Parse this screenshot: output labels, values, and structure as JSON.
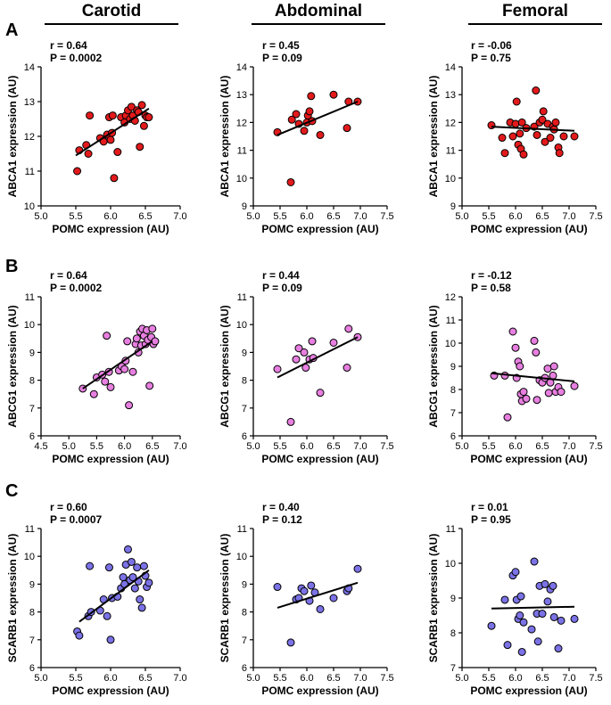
{
  "columns": [
    "Carotid",
    "Abdominal",
    "Femoral"
  ],
  "rows": [
    "A",
    "B",
    "C"
  ],
  "colors": {
    "ABCA1": "#e31a1c",
    "ABCG1": "#e77fe0",
    "SCARB1": "#7b72e6",
    "axis": "#000000"
  },
  "chart_data": [
    {
      "type": "scatter",
      "id": "A-carotid",
      "row": "A",
      "site": "Carotid",
      "r_text": "r = 0.64",
      "p_text": "P = 0.0002",
      "xlabel": "POMC expression (AU)",
      "ylabel": "ABCA1 expression (AU)",
      "xlim": [
        5.0,
        7.0
      ],
      "xticks": [
        5.0,
        5.5,
        6.0,
        6.5,
        7.0
      ],
      "xticklabels": [
        "5.0",
        "5.5",
        "6.0",
        "6.5",
        "7.0"
      ],
      "ylim": [
        10,
        14
      ],
      "yticks": [
        10,
        11,
        12,
        13,
        14
      ],
      "yticklabels": [
        "10",
        "11",
        "12",
        "13",
        "14"
      ],
      "fit": [
        [
          5.5,
          11.45
        ],
        [
          6.55,
          12.8
        ]
      ],
      "points": [
        [
          5.52,
          11.0
        ],
        [
          5.55,
          11.6
        ],
        [
          5.65,
          11.75
        ],
        [
          5.68,
          11.5
        ],
        [
          5.7,
          12.6
        ],
        [
          5.85,
          11.95
        ],
        [
          5.9,
          11.85
        ],
        [
          5.95,
          12.05
        ],
        [
          5.98,
          12.55
        ],
        [
          6.0,
          11.9
        ],
        [
          6.02,
          12.1
        ],
        [
          6.03,
          12.6
        ],
        [
          6.05,
          10.8
        ],
        [
          6.1,
          11.55
        ],
        [
          6.15,
          12.55
        ],
        [
          6.2,
          12.4
        ],
        [
          6.22,
          12.6
        ],
        [
          6.25,
          12.75
        ],
        [
          6.28,
          12.5
        ],
        [
          6.3,
          12.85
        ],
        [
          6.32,
          12.6
        ],
        [
          6.35,
          12.45
        ],
        [
          6.38,
          12.75
        ],
        [
          6.4,
          12.7
        ],
        [
          6.42,
          11.7
        ],
        [
          6.45,
          12.9
        ],
        [
          6.48,
          12.3
        ],
        [
          6.5,
          12.6
        ],
        [
          6.52,
          12.55
        ],
        [
          6.55,
          12.55
        ]
      ]
    },
    {
      "type": "scatter",
      "id": "A-abdominal",
      "row": "A",
      "site": "Abdominal",
      "r_text": "r = 0.45",
      "p_text": "P = 0.09",
      "xlabel": "POMC expression (AU)",
      "ylabel": "ABCA1 expression (AU)",
      "xlim": [
        5.0,
        7.5
      ],
      "xticks": [
        5.0,
        5.5,
        6.0,
        6.5,
        7.0,
        7.5
      ],
      "xticklabels": [
        "5.0",
        "5.5",
        "6.0",
        "6.5",
        "7.0",
        "7.5"
      ],
      "ylim": [
        9,
        14
      ],
      "yticks": [
        9,
        10,
        11,
        12,
        13,
        14
      ],
      "yticklabels": [
        "9",
        "10",
        "11",
        "12",
        "13",
        "14"
      ],
      "fit": [
        [
          5.45,
          11.55
        ],
        [
          6.95,
          12.75
        ]
      ],
      "points": [
        [
          5.45,
          11.65
        ],
        [
          5.7,
          9.85
        ],
        [
          5.72,
          12.1
        ],
        [
          5.8,
          12.3
        ],
        [
          5.85,
          11.95
        ],
        [
          5.95,
          11.7
        ],
        [
          6.0,
          12.0
        ],
        [
          6.02,
          12.25
        ],
        [
          6.05,
          12.4
        ],
        [
          6.08,
          12.95
        ],
        [
          6.1,
          12.05
        ],
        [
          6.25,
          11.55
        ],
        [
          6.5,
          13.0
        ],
        [
          6.75,
          11.8
        ],
        [
          6.78,
          12.75
        ],
        [
          6.95,
          12.75
        ]
      ]
    },
    {
      "type": "scatter",
      "id": "A-femoral",
      "row": "A",
      "site": "Femoral",
      "r_text": "r = -0.06",
      "p_text": "P = 0.75",
      "xlabel": "POMC expression (AU)",
      "ylabel": "ABCA1 expression (AU)",
      "xlim": [
        5.0,
        7.5
      ],
      "xticks": [
        5.0,
        5.5,
        6.0,
        6.5,
        7.0,
        7.5
      ],
      "xticklabels": [
        "5.0",
        "5.5",
        "6.0",
        "6.5",
        "7.0",
        "7.5"
      ],
      "ylim": [
        9,
        14
      ],
      "yticks": [
        9,
        10,
        11,
        12,
        13,
        14
      ],
      "yticklabels": [
        "9",
        "10",
        "11",
        "12",
        "13",
        "14"
      ],
      "fit": [
        [
          5.55,
          11.85
        ],
        [
          7.1,
          11.7
        ]
      ],
      "points": [
        [
          5.55,
          11.9
        ],
        [
          5.75,
          11.45
        ],
        [
          5.8,
          10.9
        ],
        [
          5.9,
          12.0
        ],
        [
          5.95,
          11.5
        ],
        [
          6.0,
          11.95
        ],
        [
          6.02,
          12.75
        ],
        [
          6.05,
          11.2
        ],
        [
          6.08,
          11.6
        ],
        [
          6.1,
          11.05
        ],
        [
          6.12,
          12.0
        ],
        [
          6.15,
          10.85
        ],
        [
          6.2,
          11.8
        ],
        [
          6.35,
          11.85
        ],
        [
          6.38,
          13.15
        ],
        [
          6.4,
          11.55
        ],
        [
          6.45,
          12.0
        ],
        [
          6.5,
          12.1
        ],
        [
          6.52,
          12.4
        ],
        [
          6.55,
          11.3
        ],
        [
          6.6,
          11.95
        ],
        [
          6.65,
          11.45
        ],
        [
          6.7,
          11.85
        ],
        [
          6.72,
          11.75
        ],
        [
          6.75,
          12.0
        ],
        [
          6.8,
          11.1
        ],
        [
          6.82,
          10.9
        ],
        [
          6.9,
          11.5
        ],
        [
          7.1,
          11.5
        ]
      ]
    },
    {
      "type": "scatter",
      "id": "B-carotid",
      "row": "B",
      "site": "Carotid",
      "r_text": "r = 0.64",
      "p_text": "P = 0.0002",
      "xlabel": "POMC expression (AU)",
      "ylabel": "ABCG1 expression (AU)",
      "xlim": [
        4.5,
        7.0
      ],
      "xticks": [
        4.5,
        5.0,
        5.5,
        6.0,
        6.5,
        7.0
      ],
      "xticklabels": [
        "4.5",
        "5.0",
        "5.5",
        "6.0",
        "6.5",
        "7.0"
      ],
      "ylim": [
        6,
        11
      ],
      "yticks": [
        6,
        7,
        8,
        9,
        10,
        11
      ],
      "yticklabels": [
        "6",
        "7",
        "8",
        "9",
        "10",
        "11"
      ],
      "fit": [
        [
          5.25,
          7.7
        ],
        [
          6.5,
          9.4
        ]
      ],
      "points": [
        [
          5.25,
          7.7
        ],
        [
          5.45,
          7.5
        ],
        [
          5.5,
          8.1
        ],
        [
          5.6,
          8.2
        ],
        [
          5.65,
          7.95
        ],
        [
          5.68,
          9.6
        ],
        [
          5.72,
          8.3
        ],
        [
          5.75,
          7.75
        ],
        [
          5.9,
          8.35
        ],
        [
          5.95,
          8.5
        ],
        [
          6.0,
          8.4
        ],
        [
          6.02,
          8.7
        ],
        [
          6.05,
          9.4
        ],
        [
          6.08,
          7.1
        ],
        [
          6.15,
          8.3
        ],
        [
          6.2,
          9.3
        ],
        [
          6.22,
          9.5
        ],
        [
          6.25,
          9.0
        ],
        [
          6.28,
          9.75
        ],
        [
          6.3,
          9.25
        ],
        [
          6.32,
          9.85
        ],
        [
          6.35,
          9.6
        ],
        [
          6.38,
          9.3
        ],
        [
          6.4,
          9.8
        ],
        [
          6.42,
          9.45
        ],
        [
          6.45,
          7.8
        ],
        [
          6.48,
          9.55
        ],
        [
          6.5,
          9.85
        ],
        [
          6.52,
          9.3
        ],
        [
          6.55,
          9.4
        ]
      ]
    },
    {
      "type": "scatter",
      "id": "B-abdominal",
      "row": "B",
      "site": "Abdominal",
      "r_text": "r = 0.44",
      "p_text": "P = 0.09",
      "xlabel": "POMC expression (AU)",
      "ylabel": "ABCG1 expression (AU)",
      "xlim": [
        5.0,
        7.5
      ],
      "xticks": [
        5.0,
        5.5,
        6.0,
        6.5,
        7.0,
        7.5
      ],
      "xticklabels": [
        "5.0",
        "5.5",
        "6.0",
        "6.5",
        "7.0",
        "7.5"
      ],
      "ylim": [
        6,
        11
      ],
      "yticks": [
        6,
        7,
        8,
        9,
        10,
        11
      ],
      "yticklabels": [
        "6",
        "7",
        "8",
        "9",
        "10",
        "11"
      ],
      "fit": [
        [
          5.45,
          8.1
        ],
        [
          6.95,
          9.55
        ]
      ],
      "points": [
        [
          5.45,
          8.4
        ],
        [
          5.7,
          6.5
        ],
        [
          5.8,
          8.75
        ],
        [
          5.85,
          9.15
        ],
        [
          5.95,
          9.0
        ],
        [
          5.98,
          8.45
        ],
        [
          6.05,
          8.75
        ],
        [
          6.1,
          9.4
        ],
        [
          6.12,
          8.8
        ],
        [
          6.25,
          7.55
        ],
        [
          6.5,
          9.35
        ],
        [
          6.75,
          8.45
        ],
        [
          6.78,
          9.85
        ],
        [
          6.95,
          9.55
        ]
      ]
    },
    {
      "type": "scatter",
      "id": "B-femoral",
      "row": "B",
      "site": "Femoral",
      "r_text": "r = -0.12",
      "p_text": "P = 0.58",
      "xlabel": "POMC expression (AU)",
      "ylabel": "ABCG1 expression (AU)",
      "xlim": [
        5.0,
        7.5
      ],
      "xticks": [
        5.0,
        5.5,
        6.0,
        6.5,
        7.0,
        7.5
      ],
      "xticklabels": [
        "5.0",
        "5.5",
        "6.0",
        "6.5",
        "7.0",
        "7.5"
      ],
      "ylim": [
        6,
        12
      ],
      "yticks": [
        6,
        7,
        8,
        9,
        10,
        11,
        12
      ],
      "yticklabels": [
        "6",
        "7",
        "8",
        "9",
        "10",
        "11",
        "12"
      ],
      "fit": [
        [
          5.55,
          8.7
        ],
        [
          7.1,
          8.35
        ]
      ],
      "points": [
        [
          5.6,
          8.6
        ],
        [
          5.8,
          8.6
        ],
        [
          5.85,
          6.8
        ],
        [
          5.95,
          10.5
        ],
        [
          6.0,
          9.8
        ],
        [
          6.02,
          8.5
        ],
        [
          6.05,
          9.2
        ],
        [
          6.08,
          9.0
        ],
        [
          6.1,
          7.8
        ],
        [
          6.12,
          7.5
        ],
        [
          6.15,
          7.9
        ],
        [
          6.2,
          7.6
        ],
        [
          6.35,
          10.1
        ],
        [
          6.38,
          9.6
        ],
        [
          6.4,
          7.55
        ],
        [
          6.45,
          8.4
        ],
        [
          6.5,
          8.3
        ],
        [
          6.55,
          8.5
        ],
        [
          6.6,
          8.9
        ],
        [
          6.62,
          7.85
        ],
        [
          6.65,
          8.3
        ],
        [
          6.7,
          8.6
        ],
        [
          6.72,
          9.0
        ],
        [
          6.75,
          7.9
        ],
        [
          6.8,
          8.1
        ],
        [
          6.85,
          7.9
        ],
        [
          7.1,
          8.15
        ]
      ]
    },
    {
      "type": "scatter",
      "id": "C-carotid",
      "row": "C",
      "site": "Carotid",
      "r_text": "r = 0.60",
      "p_text": "P = 0.0007",
      "xlabel": "POMC expression (AU)",
      "ylabel": "SCARB1 expression (AU)",
      "xlim": [
        5.0,
        7.0
      ],
      "xticks": [
        5.0,
        5.5,
        6.0,
        6.5,
        7.0
      ],
      "xticklabels": [
        "5.0",
        "5.5",
        "6.0",
        "6.5",
        "7.0"
      ],
      "ylim": [
        6,
        11
      ],
      "yticks": [
        6,
        7,
        8,
        9,
        10,
        11
      ],
      "yticklabels": [
        "6",
        "7",
        "8",
        "9",
        "10",
        "11"
      ],
      "fit": [
        [
          5.55,
          7.65
        ],
        [
          6.55,
          9.5
        ]
      ],
      "points": [
        [
          5.52,
          7.3
        ],
        [
          5.55,
          7.15
        ],
        [
          5.68,
          7.85
        ],
        [
          5.7,
          9.65
        ],
        [
          5.72,
          8.0
        ],
        [
          5.85,
          8.05
        ],
        [
          5.9,
          8.45
        ],
        [
          5.95,
          7.85
        ],
        [
          5.98,
          9.6
        ],
        [
          6.0,
          7.0
        ],
        [
          6.02,
          8.5
        ],
        [
          6.1,
          8.55
        ],
        [
          6.15,
          8.85
        ],
        [
          6.18,
          9.25
        ],
        [
          6.2,
          9.0
        ],
        [
          6.22,
          9.7
        ],
        [
          6.25,
          10.25
        ],
        [
          6.28,
          9.15
        ],
        [
          6.3,
          9.8
        ],
        [
          6.32,
          9.25
        ],
        [
          6.35,
          8.85
        ],
        [
          6.38,
          9.6
        ],
        [
          6.4,
          9.1
        ],
        [
          6.42,
          8.45
        ],
        [
          6.45,
          8.15
        ],
        [
          6.48,
          9.65
        ],
        [
          6.5,
          9.3
        ],
        [
          6.52,
          8.9
        ],
        [
          6.55,
          9.05
        ]
      ]
    },
    {
      "type": "scatter",
      "id": "C-abdominal",
      "row": "C",
      "site": "Abdominal",
      "r_text": "r = 0.40",
      "p_text": "P = 0.12",
      "xlabel": "POMC expression (AU)",
      "ylabel": "SCARB1 expression (AU)",
      "xlim": [
        5.0,
        7.5
      ],
      "xticks": [
        5.0,
        5.5,
        6.0,
        6.5,
        7.0,
        7.5
      ],
      "xticklabels": [
        "5.0",
        "5.5",
        "6.0",
        "6.5",
        "7.0",
        "7.5"
      ],
      "ylim": [
        6,
        11
      ],
      "yticks": [
        6,
        7,
        8,
        9,
        10,
        11
      ],
      "yticklabels": [
        "6",
        "7",
        "8",
        "9",
        "10",
        "11"
      ],
      "fit": [
        [
          5.45,
          8.15
        ],
        [
          6.95,
          9.05
        ]
      ],
      "points": [
        [
          5.45,
          8.9
        ],
        [
          5.7,
          6.9
        ],
        [
          5.8,
          8.45
        ],
        [
          5.85,
          8.5
        ],
        [
          5.9,
          8.85
        ],
        [
          5.95,
          8.75
        ],
        [
          6.05,
          8.4
        ],
        [
          6.08,
          8.95
        ],
        [
          6.15,
          8.7
        ],
        [
          6.25,
          8.1
        ],
        [
          6.5,
          8.5
        ],
        [
          6.75,
          8.75
        ],
        [
          6.78,
          8.85
        ],
        [
          6.95,
          9.55
        ]
      ]
    },
    {
      "type": "scatter",
      "id": "C-femoral",
      "row": "C",
      "site": "Femoral",
      "r_text": "r = 0.01",
      "p_text": "P = 0.95",
      "xlabel": "POMC expression (AU)",
      "ylabel": "SCARB1 expression (AU)",
      "xlim": [
        5.0,
        7.5
      ],
      "xticks": [
        5.0,
        5.5,
        6.0,
        6.5,
        7.0,
        7.5
      ],
      "xticklabels": [
        "5.0",
        "5.5",
        "6.0",
        "6.5",
        "7.0",
        "7.5"
      ],
      "ylim": [
        7,
        11
      ],
      "yticks": [
        7,
        8,
        9,
        10,
        11
      ],
      "yticklabels": [
        "7",
        "8",
        "9",
        "10",
        "11"
      ],
      "fit": [
        [
          5.55,
          8.7
        ],
        [
          7.1,
          8.75
        ]
      ],
      "points": [
        [
          5.55,
          8.2
        ],
        [
          5.8,
          8.95
        ],
        [
          5.85,
          7.65
        ],
        [
          5.95,
          9.65
        ],
        [
          6.0,
          9.75
        ],
        [
          6.02,
          8.95
        ],
        [
          6.05,
          8.4
        ],
        [
          6.08,
          8.5
        ],
        [
          6.1,
          9.05
        ],
        [
          6.12,
          7.45
        ],
        [
          6.15,
          8.3
        ],
        [
          6.3,
          8.1
        ],
        [
          6.35,
          10.05
        ],
        [
          6.4,
          8.55
        ],
        [
          6.42,
          7.75
        ],
        [
          6.45,
          9.35
        ],
        [
          6.5,
          8.55
        ],
        [
          6.55,
          9.4
        ],
        [
          6.6,
          8.9
        ],
        [
          6.65,
          9.25
        ],
        [
          6.7,
          9.35
        ],
        [
          6.72,
          8.45
        ],
        [
          6.8,
          7.55
        ],
        [
          6.85,
          8.35
        ],
        [
          7.1,
          8.4
        ]
      ]
    }
  ]
}
